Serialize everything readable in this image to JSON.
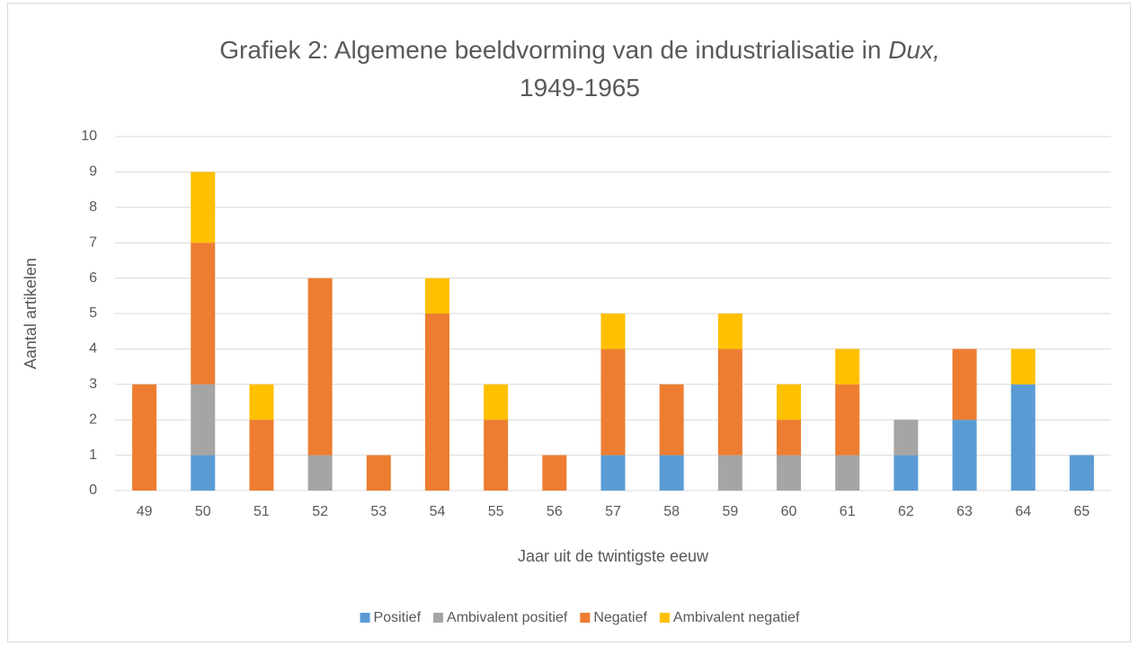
{
  "chart_data": {
    "type": "stacked-bar",
    "title": {
      "lines": [
        [
          {
            "text": "Grafiek 2: Algemene beeldvorming van de industrialisatie in ",
            "italic": false
          },
          {
            "text": "Dux,",
            "italic": true
          }
        ],
        [
          {
            "text": "1949-1965",
            "italic": false
          }
        ]
      ]
    },
    "xlabel": "Jaar uit de twintigste eeuw",
    "ylabel": "Aantal artikelen",
    "categories": [
      "49",
      "50",
      "51",
      "52",
      "53",
      "54",
      "55",
      "56",
      "57",
      "58",
      "59",
      "60",
      "61",
      "62",
      "63",
      "64",
      "65"
    ],
    "series": [
      {
        "name": "Positief",
        "color": "#5b9bd5",
        "values": [
          0,
          1,
          0,
          0,
          0,
          0,
          0,
          0,
          1,
          1,
          0,
          0,
          0,
          1,
          2,
          3,
          1
        ]
      },
      {
        "name": "Ambivalent positief",
        "color": "#a5a5a5",
        "values": [
          0,
          2,
          0,
          1,
          0,
          0,
          0,
          0,
          0,
          0,
          1,
          1,
          1,
          1,
          0,
          0,
          0
        ]
      },
      {
        "name": "Negatief",
        "color": "#ed7d31",
        "values": [
          3,
          4,
          2,
          5,
          1,
          5,
          2,
          1,
          3,
          2,
          3,
          1,
          2,
          0,
          2,
          0,
          0
        ]
      },
      {
        "name": "Ambivalent negatief",
        "color": "#ffc000",
        "values": [
          0,
          2,
          1,
          0,
          0,
          1,
          1,
          0,
          1,
          0,
          1,
          1,
          1,
          0,
          0,
          1,
          0
        ]
      }
    ],
    "ylim": [
      0,
      10
    ],
    "yticks": [
      0,
      1,
      2,
      3,
      4,
      5,
      6,
      7,
      8,
      9,
      10
    ],
    "grid": true,
    "legend": "bottom"
  }
}
